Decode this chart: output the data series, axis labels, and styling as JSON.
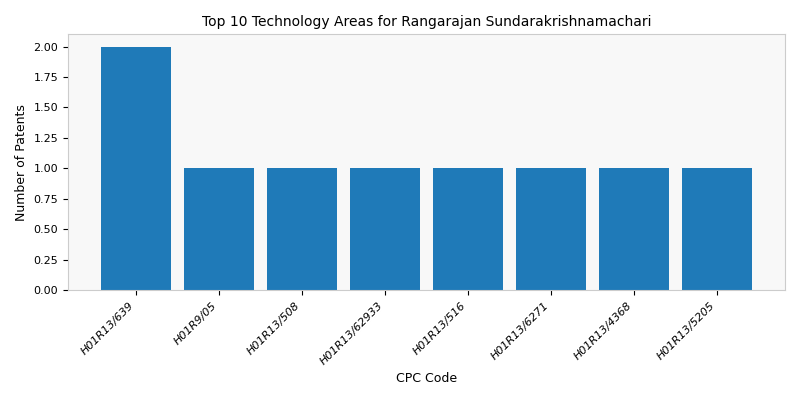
{
  "title": "Top 10 Technology Areas for Rangarajan Sundarakrishnamachari",
  "xlabel": "CPC Code",
  "ylabel": "Number of Patents",
  "categories": [
    "H01R13/639",
    "H01R9/05",
    "H01R13/508",
    "H01R13/62933",
    "H01R13/516",
    "H01R13/6271",
    "H01R13/4368",
    "H01R13/5205"
  ],
  "values": [
    2,
    1,
    1,
    1,
    1,
    1,
    1,
    1
  ],
  "bar_color": "#1f7ab8",
  "ylim": [
    0,
    2.1
  ],
  "yticks": [
    0.0,
    0.25,
    0.5,
    0.75,
    1.0,
    1.25,
    1.5,
    1.75,
    2.0
  ],
  "figsize": [
    8.0,
    4.0
  ],
  "dpi": 100,
  "bar_width": 0.85,
  "title_fontsize": 10,
  "axis_label_fontsize": 9,
  "tick_fontsize": 8
}
